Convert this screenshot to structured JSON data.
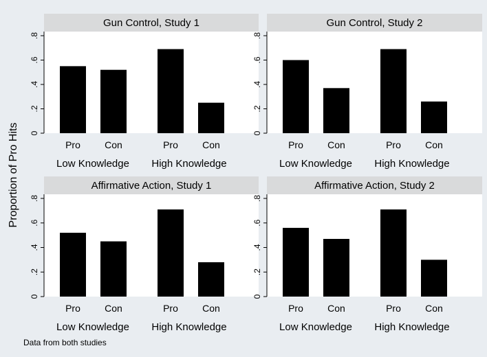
{
  "figure": {
    "ylabel": "Proportion of Pro Hits",
    "note": "Data from both studies",
    "colors": {
      "background": "#e9edf1",
      "plot": "#ffffff",
      "header": "#d9dadb",
      "bar": "#000000"
    }
  },
  "chart_data": [
    {
      "type": "bar",
      "title": "Gun Control, Study 1",
      "categories": [
        "Pro",
        "Con",
        "Pro",
        "Con"
      ],
      "groups": [
        "Low Knowledge",
        "High Knowledge"
      ],
      "values": [
        0.55,
        0.52,
        0.69,
        0.25
      ],
      "ylim": [
        0,
        0.8
      ],
      "yticks": [
        0,
        0.2,
        0.4,
        0.6,
        0.8
      ],
      "ytick_labels": [
        "0",
        ".2",
        ".4",
        ".6",
        ".8"
      ],
      "grid": false
    },
    {
      "type": "bar",
      "title": "Gun Control, Study 2",
      "categories": [
        "Pro",
        "Con",
        "Pro",
        "Con"
      ],
      "groups": [
        "Low Knowledge",
        "High Knowledge"
      ],
      "values": [
        0.6,
        0.37,
        0.69,
        0.26
      ],
      "ylim": [
        0,
        0.8
      ],
      "yticks": [
        0,
        0.2,
        0.4,
        0.6,
        0.8
      ],
      "ytick_labels": [
        "0",
        ".2",
        ".4",
        ".6",
        ".8"
      ],
      "grid": false
    },
    {
      "type": "bar",
      "title": "Affirmative Action, Study 1",
      "categories": [
        "Pro",
        "Con",
        "Pro",
        "Con"
      ],
      "groups": [
        "Low Knowledge",
        "High Knowledge"
      ],
      "values": [
        0.52,
        0.45,
        0.71,
        0.28
      ],
      "ylim": [
        0,
        0.8
      ],
      "yticks": [
        0,
        0.2,
        0.4,
        0.6,
        0.8
      ],
      "ytick_labels": [
        "0",
        ".2",
        ".4",
        ".6",
        ".8"
      ],
      "grid": false
    },
    {
      "type": "bar",
      "title": "Affirmative Action, Study 2",
      "categories": [
        "Pro",
        "Con",
        "Pro",
        "Con"
      ],
      "groups": [
        "Low Knowledge",
        "High Knowledge"
      ],
      "values": [
        0.56,
        0.47,
        0.71,
        0.3
      ],
      "ylim": [
        0,
        0.8
      ],
      "yticks": [
        0,
        0.2,
        0.4,
        0.6,
        0.8
      ],
      "ytick_labels": [
        "0",
        ".2",
        ".4",
        ".6",
        ".8"
      ],
      "grid": false
    }
  ]
}
